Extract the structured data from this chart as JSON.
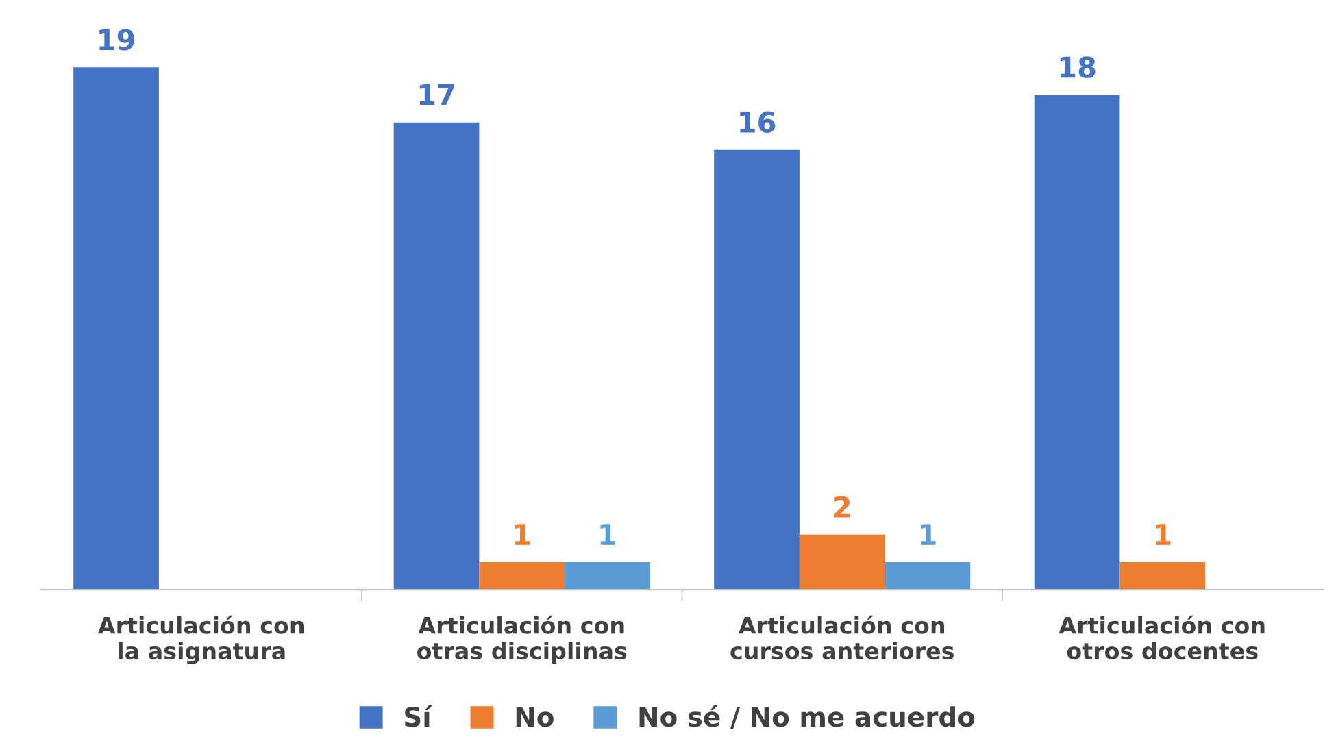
{
  "chart_data": {
    "type": "bar",
    "categories": [
      "Articulación con la asignatura",
      "Articulación con otras disciplinas",
      "Articulación con cursos anteriores",
      "Articulación con otros docentes"
    ],
    "series": [
      {
        "name": "Sí",
        "color": "#4472c4",
        "values": [
          19,
          17,
          16,
          18
        ]
      },
      {
        "name": "No",
        "color": "#ed7d31",
        "values": [
          null,
          1,
          2,
          1
        ]
      },
      {
        "name": "No sé / No me acuerdo",
        "color": "#5b9bd5",
        "values": [
          null,
          1,
          1,
          null
        ]
      }
    ],
    "data_labels": true,
    "legend": "bottom",
    "grid": false
  }
}
